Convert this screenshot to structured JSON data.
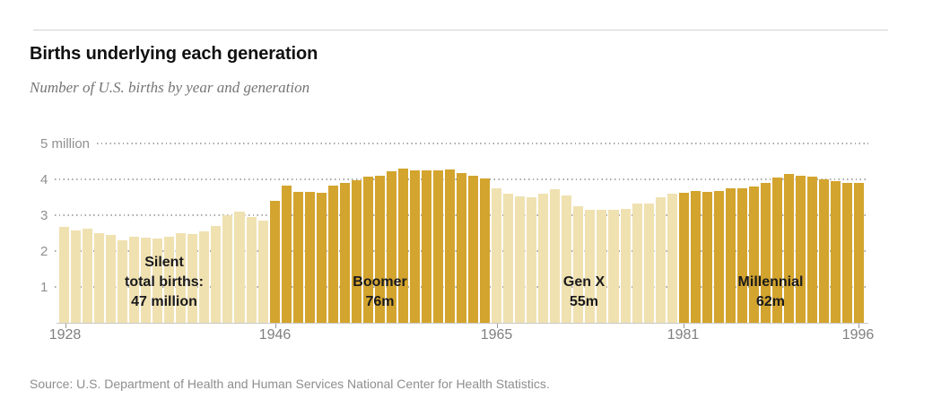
{
  "header": {
    "title": "Births underlying each generation",
    "subtitle": "Number of U.S. births by year and generation"
  },
  "footer": {
    "source": "Source: U.S. Department of Health and Human Services National Center for Health Statistics."
  },
  "chart_data": {
    "type": "bar",
    "title": "Births underlying each generation",
    "subtitle": "Number of U.S. births by year and generation",
    "unit": "millions of births per year",
    "ylim": [
      0,
      5
    ],
    "grid": "dotted horizontal gridlines, on",
    "legend_position": "none",
    "y_ticks": [
      {
        "value": 5,
        "label": "5 million"
      },
      {
        "value": 4,
        "label": "4"
      },
      {
        "value": 3,
        "label": "3"
      },
      {
        "value": 2,
        "label": "2"
      },
      {
        "value": 1,
        "label": "1"
      }
    ],
    "x_ticks": [
      1928,
      1946,
      1965,
      1981,
      1996
    ],
    "colors": {
      "light_bar": "#f0e1b1",
      "dark_bar": "#d3a42e"
    },
    "generations": [
      {
        "name": "Silent",
        "start": 1928,
        "end": 1945,
        "shade": "light_bar",
        "annotation_lines": [
          "Silent",
          "total births:",
          "47 million"
        ]
      },
      {
        "name": "Boomer",
        "start": 1946,
        "end": 1964,
        "shade": "dark_bar",
        "annotation_lines": [
          "Boomer",
          "76m"
        ]
      },
      {
        "name": "Gen X",
        "start": 1965,
        "end": 1980,
        "shade": "light_bar",
        "annotation_lines": [
          "Gen X",
          "55m"
        ]
      },
      {
        "name": "Millennial",
        "start": 1981,
        "end": 1996,
        "shade": "dark_bar",
        "annotation_lines": [
          "Millennial",
          "62m"
        ]
      }
    ],
    "series": [
      {
        "name": "U.S. births",
        "x_start": 1928,
        "x_end": 1996,
        "values": [
          2.67,
          2.58,
          2.62,
          2.51,
          2.44,
          2.31,
          2.4,
          2.38,
          2.36,
          2.41,
          2.5,
          2.47,
          2.56,
          2.7,
          2.99,
          3.1,
          2.94,
          2.86,
          3.41,
          3.82,
          3.64,
          3.65,
          3.63,
          3.82,
          3.91,
          3.97,
          4.08,
          4.1,
          4.22,
          4.31,
          4.26,
          4.25,
          4.26,
          4.27,
          4.17,
          4.1,
          4.03,
          3.76,
          3.61,
          3.52,
          3.5,
          3.6,
          3.73,
          3.56,
          3.26,
          3.14,
          3.16,
          3.14,
          3.17,
          3.33,
          3.33,
          3.49,
          3.61,
          3.63,
          3.68,
          3.64,
          3.67,
          3.76,
          3.76,
          3.81,
          3.91,
          4.04,
          4.16,
          4.11,
          4.07,
          4.0,
          3.95,
          3.9,
          3.89
        ]
      }
    ]
  }
}
